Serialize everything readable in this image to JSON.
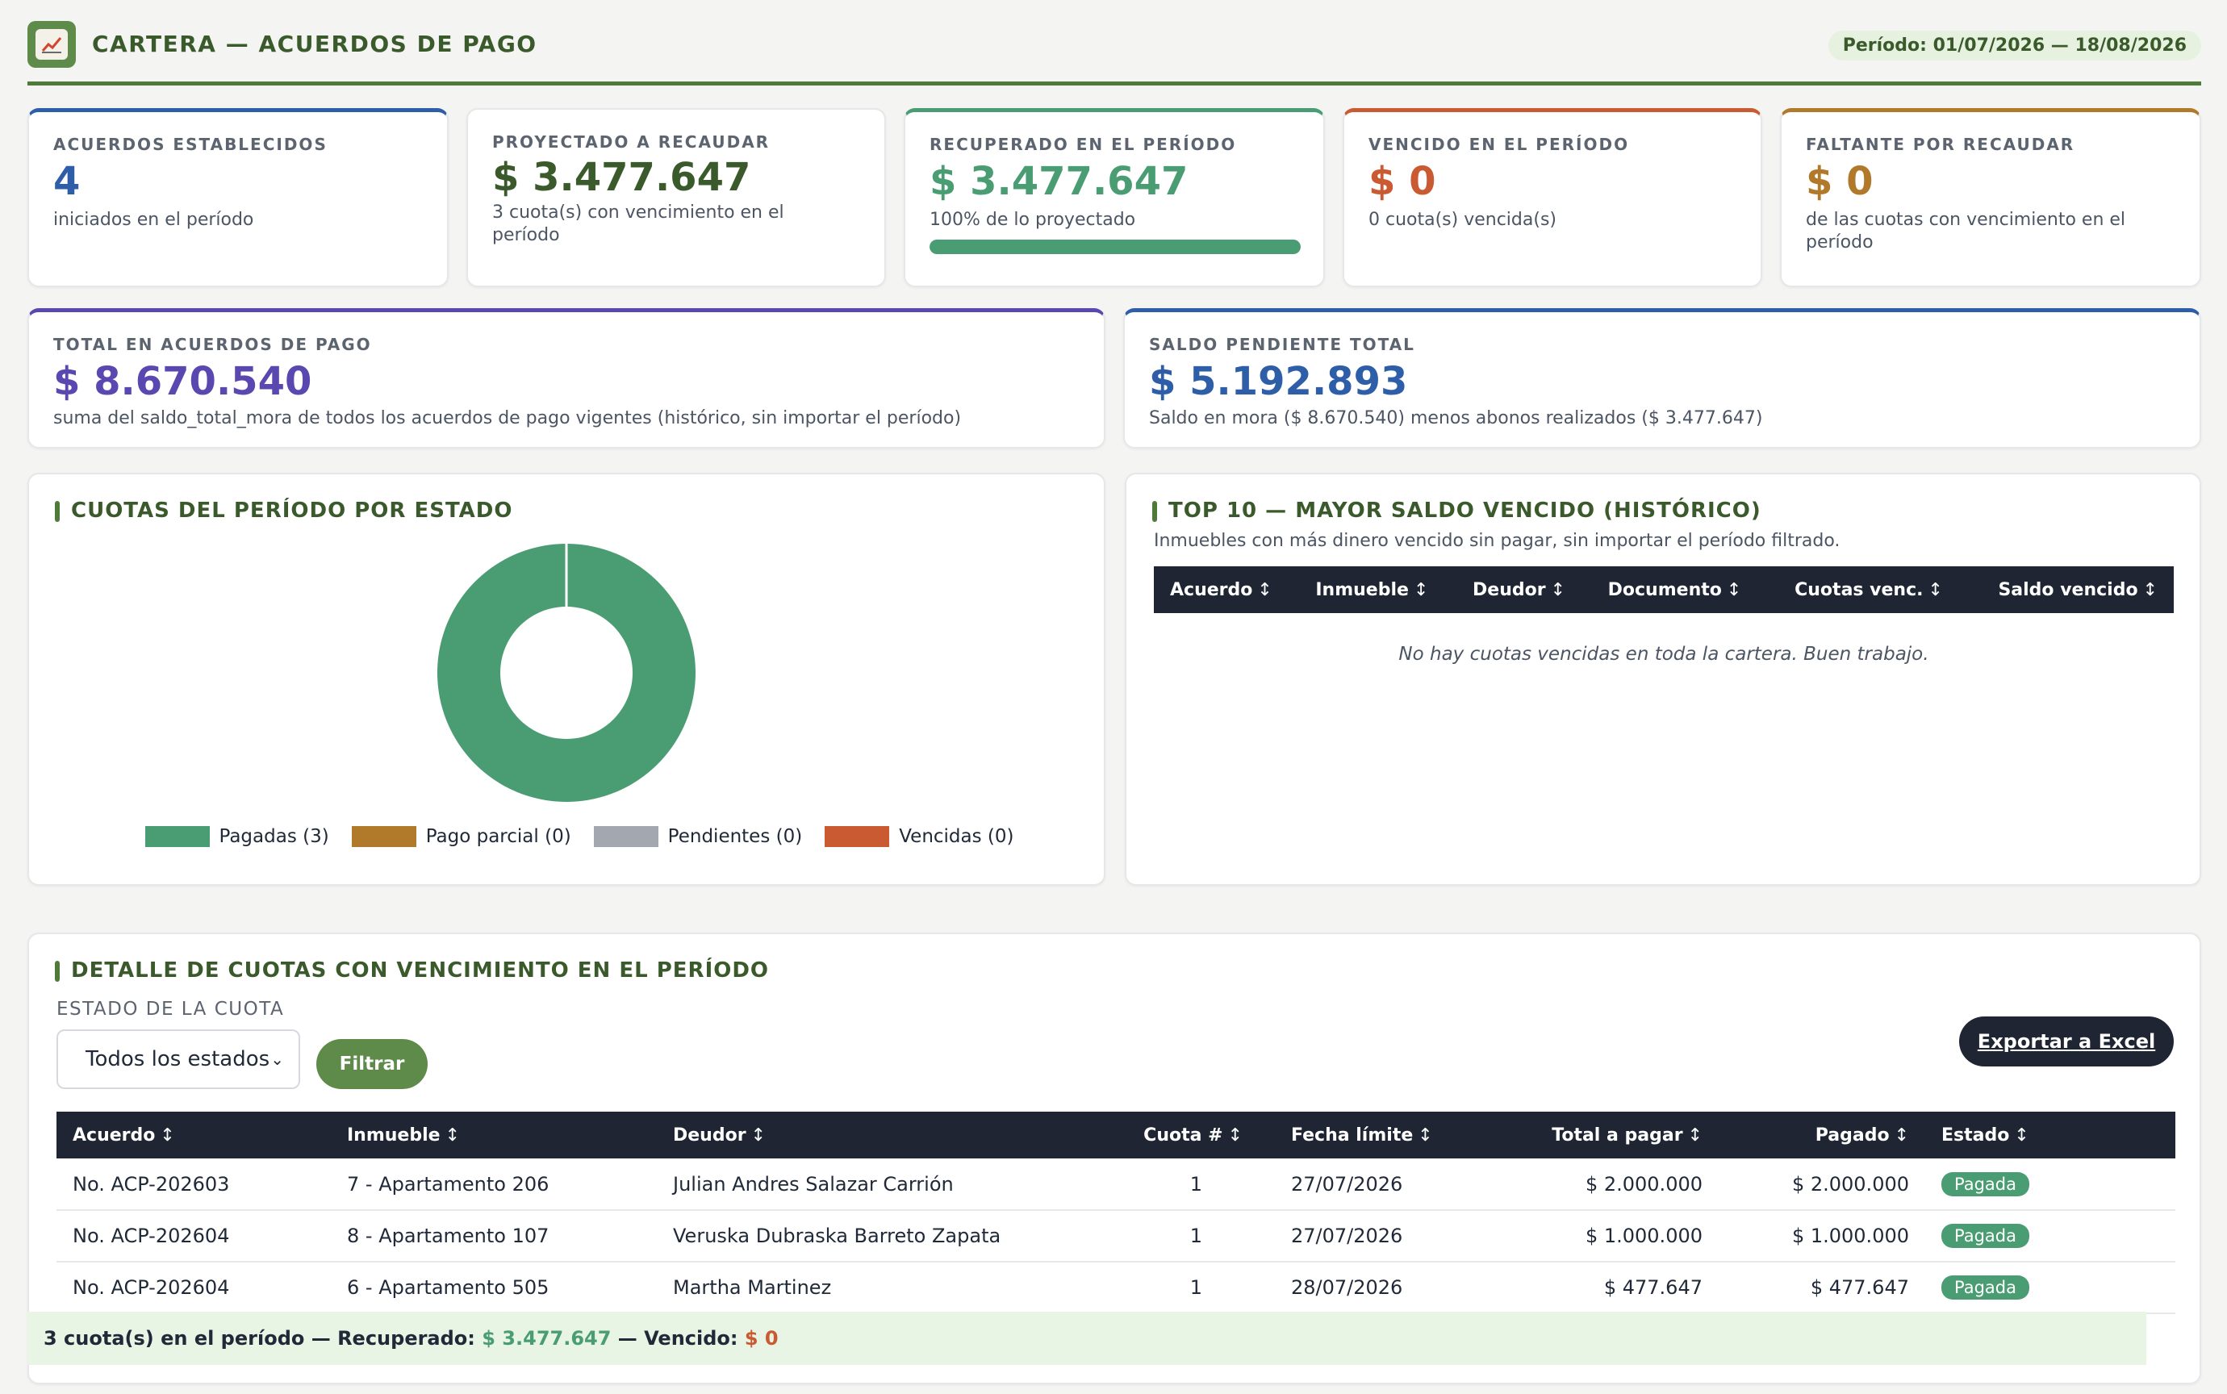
{
  "header": {
    "title": "CARTERA — ACUERDOS DE PAGO",
    "period": "Período: 01/07/2026 — 18/08/2026",
    "logo_icon": "chart-icon"
  },
  "kpis": [
    {
      "label": "ACUERDOS ESTABLECIDOS",
      "value": "4",
      "sub": "iniciados en el período",
      "color": "#2f5ea8"
    },
    {
      "label": "PROYECTADO A RECAUDAR",
      "value": "$ 3.477.647",
      "sub": "3 cuota(s) con vencimiento en el período",
      "color": "#3a5a2c"
    },
    {
      "label": "RECUPERADO EN EL PERÍODO",
      "value": "$ 3.477.647",
      "sub": "100% de lo proyectado",
      "color": "#4a9d72",
      "progress": 1.0
    },
    {
      "label": "VENCIDO EN EL PERÍODO",
      "value": "$ 0",
      "sub": "0 cuota(s) vencida(s)",
      "color": "#c95a32"
    },
    {
      "label": "FALTANTE POR RECAUDAR",
      "value": "$ 0",
      "sub": "de las cuotas con vencimiento en el período",
      "color": "#b07a2a"
    }
  ],
  "totals": [
    {
      "label": "TOTAL EN ACUERDOS DE PAGO",
      "value": "$ 8.670.540",
      "sub": "suma del saldo_total_mora de todos los acuerdos de pago vigentes (histórico, sin importar el período)",
      "color": "#5a48b0"
    },
    {
      "label": "SALDO PENDIENTE TOTAL",
      "value": "$ 5.192.893",
      "sub": "Saldo en mora ($ 8.670.540) menos abonos realizados ($ 3.477.647)",
      "color": "#2f5ea8"
    }
  ],
  "status_chart": {
    "title": "CUOTAS DEL PERÍODO POR ESTADO",
    "chart_data": {
      "type": "pie",
      "categories": [
        "Pagadas",
        "Pago parcial",
        "Pendientes",
        "Vencidas"
      ],
      "values": [
        3,
        0,
        0,
        0
      ],
      "colors": [
        "#4a9d72",
        "#b07a2a",
        "#a2a7b0",
        "#c95a32"
      ],
      "legend": [
        "Pagadas (3)",
        "Pago parcial (0)",
        "Pendientes (0)",
        "Vencidas (0)"
      ]
    }
  },
  "top10": {
    "title": "TOP 10 — MAYOR SALDO VENCIDO (HISTÓRICO)",
    "subtitle": "Inmuebles con más dinero vencido sin pagar, sin importar el período filtrado.",
    "columns": [
      "Acuerdo",
      "Inmueble",
      "Deudor",
      "Documento",
      "Cuotas venc.",
      "Saldo vencido"
    ],
    "empty_message": "No hay cuotas vencidas en toda la cartera. Buen trabajo."
  },
  "detail": {
    "title": "DETALLE DE CUOTAS CON VENCIMIENTO EN EL PERÍODO",
    "filter_label": "ESTADO DE LA CUOTA",
    "filter_value": "Todos los estados",
    "filter_button": "Filtrar",
    "export_button": "Exportar a Excel",
    "columns": [
      "Acuerdo",
      "Inmueble",
      "Deudor",
      "Cuota #",
      "Fecha límite",
      "Total a pagar",
      "Pagado",
      "Estado"
    ],
    "rows": [
      {
        "acuerdo": "No. ACP-202603",
        "inmueble": "7 - Apartamento 206",
        "deudor": "Julian Andres Salazar Carrión",
        "cuota": "1",
        "fecha": "27/07/2026",
        "total": "$ 2.000.000",
        "pagado": "$ 2.000.000",
        "estado": "Pagada"
      },
      {
        "acuerdo": "No. ACP-202604",
        "inmueble": "8 - Apartamento 107",
        "deudor": "Veruska Dubraska Barreto Zapata",
        "cuota": "1",
        "fecha": "27/07/2026",
        "total": "$ 1.000.000",
        "pagado": "$ 1.000.000",
        "estado": "Pagada"
      },
      {
        "acuerdo": "No. ACP-202604",
        "inmueble": "6 - Apartamento 505",
        "deudor": "Martha Martinez",
        "cuota": "1",
        "fecha": "28/07/2026",
        "total": "$ 477.647",
        "pagado": "$ 477.647",
        "estado": "Pagada"
      }
    ],
    "summary": {
      "prefix": "3 cuota(s) en el período — Recuperado:",
      "recovered": "$ 3.477.647",
      "mid": "— Vencido:",
      "overdue": "$ 0"
    }
  }
}
